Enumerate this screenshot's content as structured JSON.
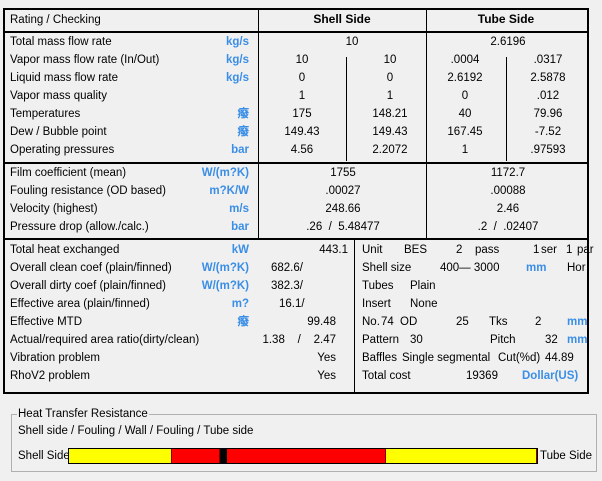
{
  "header": {
    "title": "Rating / Checking",
    "shell": "Shell Side",
    "tube": "Tube Side"
  },
  "section1": [
    {
      "label": "Total mass flow rate",
      "unit": "kg/s",
      "shell": "10",
      "tube": "2.6196"
    },
    {
      "label": "Vapor mass flow rate  (In/Out)",
      "unit": "kg/s",
      "shell_in": "10",
      "shell_out": "10",
      "tube_in": ".0004",
      "tube_out": ".0317"
    },
    {
      "label": "Liquid mass flow rate",
      "unit": "kg/s",
      "shell_in": "0",
      "shell_out": "0",
      "tube_in": "2.6192",
      "tube_out": "2.5878"
    },
    {
      "label": "Vapor mass quality",
      "unit": "",
      "shell_in": "1",
      "shell_out": "1",
      "tube_in": "0",
      "tube_out": ".012"
    },
    {
      "label": "Temperatures",
      "unit": "癈",
      "shell_in": "175",
      "shell_out": "148.21",
      "tube_in": "40",
      "tube_out": "79.96"
    },
    {
      "label": "Dew / Bubble point",
      "unit": "癈",
      "shell_in": "149.43",
      "shell_out": "149.43",
      "tube_in": "167.45",
      "tube_out": "-7.52"
    },
    {
      "label": "Operating pressures",
      "unit": "bar",
      "shell_in": "4.56",
      "shell_out": "2.2072",
      "tube_in": "1",
      "tube_out": ".97593"
    }
  ],
  "section2": [
    {
      "label": "Film coefficient (mean)",
      "unit": "W/(m?K)",
      "shell": "1755",
      "tube": "1172.7"
    },
    {
      "label": "Fouling resistance (OD based)",
      "unit": "m?K/W",
      "shell": ".00027",
      "tube": ".00088"
    },
    {
      "label": "Velocity (highest)",
      "unit": "m/s",
      "shell": "248.66",
      "tube": "2.46"
    },
    {
      "label": "Pressure drop (allow./calc.)",
      "unit": "bar",
      "shell": ".26  /  5.48477",
      "tube": ".2  /  .02407"
    }
  ],
  "section3": [
    {
      "label": "Total heat exchanged",
      "unit": "kW",
      "value": "443.1"
    },
    {
      "label": "Overall clean coef (plain/finned)",
      "unit": "W/(m?K)",
      "value": "682.6/"
    },
    {
      "label": "Overall dirty coef (plain/finned)",
      "unit": "W/(m?K)",
      "value": "382.3/"
    },
    {
      "label": "Effective area (plain/finned)",
      "unit": "m?",
      "value": "16.1/"
    },
    {
      "label": "Effective MTD",
      "unit": "癈",
      "value": "99.48"
    },
    {
      "label": "Actual/required area ratio(dirty/clean)",
      "unit": "",
      "value": "1.38    /    2.47"
    },
    {
      "label": "Vibration problem",
      "unit": "",
      "value": "Yes"
    },
    {
      "label": "RhoV2 problem",
      "unit": "",
      "value": "Yes"
    }
  ],
  "geometry": {
    "unit_label": "Unit",
    "unit_type": "BES",
    "passes": "2",
    "pass_label": "pass",
    "series": "1",
    "ser_label": "ser",
    "parallel": "1",
    "par_label": "par",
    "shell_size_label": "Shell size",
    "shell_size": "400— 3000",
    "shell_size_unit": "mm",
    "orientation": "Hor",
    "tubes_label": "Tubes",
    "tubes": "Plain",
    "insert_label": "Insert",
    "insert": "None",
    "no_label": "No.",
    "no": "74",
    "od_label": "OD",
    "od": "25",
    "tks_label": "Tks",
    "tks": "2",
    "tube_unit": "mm",
    "pattern_label": "Pattern",
    "pattern": "30",
    "pitch_label": "Pitch",
    "pitch": "32",
    "pitch_unit": "mm",
    "baffles_label": "Baffles",
    "baffles": "Single segmental",
    "cut_label": "Cut(%d)",
    "cut": "44.89",
    "cost_label": "Total cost",
    "cost": "19369",
    "cost_unit": "Dollar(US)"
  },
  "resistance": {
    "title": "Heat Transfer Resistance",
    "legend": "Shell side / Fouling / Wall / Fouling / Tube side",
    "left_label": "Shell Side",
    "right_label": "Tube Side",
    "segments": [
      {
        "name": "shell-side",
        "fraction": 0.219,
        "color": "#ffff00"
      },
      {
        "name": "shell-fouling",
        "fraction": 0.102,
        "color": "#ff0000"
      },
      {
        "name": "wall",
        "fraction": 0.015,
        "color": "#000000"
      },
      {
        "name": "tube-fouling",
        "fraction": 0.34,
        "color": "#ff0000"
      },
      {
        "name": "tube-side",
        "fraction": 0.324,
        "color": "#ffff00"
      }
    ]
  },
  "colors": {
    "unit": "#3a8ee6"
  }
}
